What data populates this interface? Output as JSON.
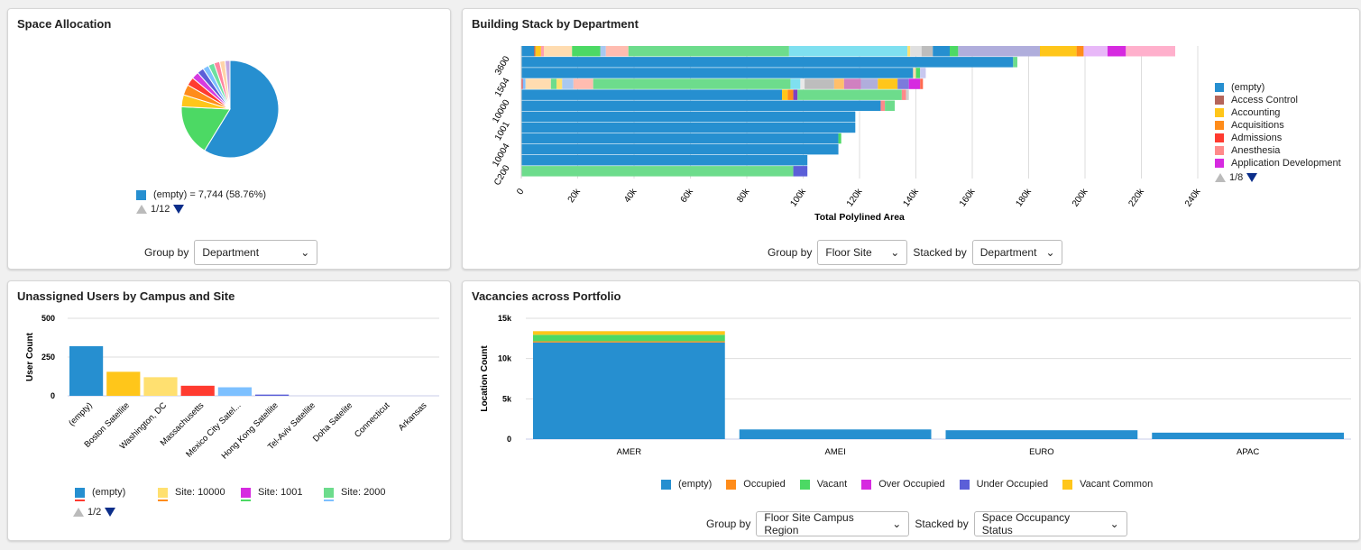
{
  "space_allocation": {
    "title": "Space Allocation",
    "legend_label": "(empty) = 7,744 (58.76%)",
    "legend_color": "#268fd0",
    "pager": "1/12",
    "group_by_label": "Group by",
    "group_by_value": "Department",
    "chart_data": {
      "type": "pie",
      "slices": [
        58.76,
        17,
        4,
        3.5,
        2.8,
        2.4,
        2.2,
        2,
        2,
        1.9,
        1.8,
        1.64
      ],
      "colors": [
        "#268fd0",
        "#4cd964",
        "#ffc61a",
        "#ff8c1a",
        "#ff3b30",
        "#d63ae0",
        "#5b5fd8",
        "#7dc0ff",
        "#6ee0a0",
        "#ff85a0",
        "#ffd4a8",
        "#c8a8e0"
      ]
    }
  },
  "building_stack": {
    "title": "Building Stack by Department",
    "group_by_label": "Group by",
    "group_by_value": "Floor Site",
    "stacked_by_label": "Stacked by",
    "stacked_by_value": "Department",
    "pager": "1/8",
    "legend": [
      {
        "label": "(empty)",
        "color": "#268fd0"
      },
      {
        "label": "Access Control",
        "color": "#b5655a"
      },
      {
        "label": "Accounting",
        "color": "#ffc61a"
      },
      {
        "label": "Acquisitions",
        "color": "#ff8c1a"
      },
      {
        "label": "Admissions",
        "color": "#ff3b30"
      },
      {
        "label": "Anesthesia",
        "color": "#ff8a8a"
      },
      {
        "label": "Application Development",
        "color": "#d62ae0"
      }
    ],
    "chart_data": {
      "type": "bar",
      "orientation": "horizontal",
      "stacked": true,
      "xlabel": "Total Polylined Area",
      "xlim": [
        0,
        240000
      ],
      "xticks": [
        "0",
        "20k",
        "40k",
        "60k",
        "80k",
        "100k",
        "120k",
        "140k",
        "160k",
        "180k",
        "200k",
        "220k",
        "240k"
      ],
      "categories": [
        "3600",
        "",
        "1504",
        "",
        "10000",
        "",
        "1001",
        "",
        "10004",
        "",
        "C200",
        ""
      ],
      "rows": [
        [
          [
            "#268fd0",
            4500
          ],
          [
            "#b5655a",
            500
          ],
          [
            "#ffc61a",
            2000
          ],
          [
            "#ff9eb0",
            1000
          ],
          [
            "#ffdcb0",
            10000
          ],
          [
            "#4cd964",
            10000
          ],
          [
            "#a8c8f0",
            2000
          ],
          [
            "#ffbcb0",
            8000
          ],
          [
            "#6ddc8c",
            57000
          ],
          [
            "#7fe0f0",
            42000
          ],
          [
            "#ffe070",
            1000
          ],
          [
            "#e0e0e0",
            4000
          ],
          [
            "#bdbdbd",
            4000
          ],
          [
            "#268fd0",
            6000
          ],
          [
            "#4cd964",
            3000
          ],
          [
            "#b0aedc",
            29000
          ],
          [
            "#ffc61a",
            13000
          ],
          [
            "#ff8c1a",
            2500
          ],
          [
            "#e8b8f8",
            8500
          ],
          [
            "#d62ae0",
            6500
          ],
          [
            "#ffb0cc",
            17500
          ]
        ],
        [
          [
            "#268fd0",
            174500
          ],
          [
            "#6ddc8c",
            1500
          ]
        ],
        [
          [
            "#268fd0",
            139000
          ],
          [
            "#ffdcb0",
            1000
          ],
          [
            "#4cd964",
            1500
          ],
          [
            "#c8c8f0",
            2000
          ]
        ],
        [
          [
            "#ff3b30",
            500
          ],
          [
            "#7dc0ff",
            1000
          ],
          [
            "#ffdcb0",
            9000
          ],
          [
            "#6ddc8c",
            2000
          ],
          [
            "#ffe070",
            2000
          ],
          [
            "#a8c8f0",
            4000
          ],
          [
            "#ffbcb0",
            7000
          ],
          [
            "#6ddc8c",
            70000
          ],
          [
            "#7fe0f0",
            3500
          ],
          [
            "#e8e8e8",
            1500
          ],
          [
            "#bdbdbd",
            10500
          ],
          [
            "#ffbf6a",
            3500
          ],
          [
            "#d080c0",
            6000
          ],
          [
            "#b0aedc",
            6000
          ],
          [
            "#ffc61a",
            7000
          ],
          [
            "#7b7bdc",
            4000
          ],
          [
            "#d62ae0",
            4000
          ],
          [
            "#ff6a50",
            1000
          ]
        ],
        [
          [
            "#268fd0",
            92500
          ],
          [
            "#ffc61a",
            2000
          ],
          [
            "#ff8c1a",
            2000
          ],
          [
            "#8040c0",
            1500
          ],
          [
            "#6ddc8c",
            37000
          ],
          [
            "#ff8a8a",
            1500
          ],
          [
            "#d0d0d0",
            1000
          ]
        ],
        [
          [
            "#268fd0",
            127500
          ],
          [
            "#ff8a8a",
            1500
          ],
          [
            "#6ddc8c",
            3500
          ]
        ],
        [
          [
            "#268fd0",
            118500
          ]
        ],
        [
          [
            "#268fd0",
            118500
          ]
        ],
        [
          [
            "#268fd0",
            112500
          ],
          [
            "#4cd964",
            1000
          ]
        ],
        [
          [
            "#268fd0",
            112500
          ]
        ],
        [
          [
            "#268fd0",
            101500
          ]
        ],
        [
          [
            "#6ddc8c",
            96500
          ],
          [
            "#5b5fd8",
            5000
          ]
        ]
      ]
    }
  },
  "unassigned_users": {
    "title": "Unassigned Users by Campus and Site",
    "pager": "1/2",
    "legend": [
      {
        "label": "(empty)",
        "color": "#268fd0",
        "under": "#ff3b30"
      },
      {
        "label": "Site: 10000",
        "color": "#ffe070",
        "under": "#ff8c1a"
      },
      {
        "label": "Site: 1001",
        "color": "#d62ae0",
        "under": "#4cd964"
      },
      {
        "label": "Site: 2000",
        "color": "#6ddc8c",
        "under": "#7dc0ff"
      }
    ],
    "chart_data": {
      "type": "bar",
      "ylabel": "User Count",
      "ylim": [
        0,
        500
      ],
      "yticks": [
        0,
        250,
        500
      ],
      "categories": [
        "(empty)",
        "Boston Satellite",
        "Washington, DC",
        "Massachusetts",
        "Mexico City Satel...",
        "Hong Kong Satellite",
        "Tel-Aviv Satellite",
        "Doha Satelite",
        "Connecticut",
        "Arkansas"
      ],
      "values": [
        320,
        155,
        120,
        65,
        55,
        8,
        0,
        0,
        0,
        0
      ],
      "colors": [
        "#268fd0",
        "#ffc61a",
        "#ffe070",
        "#ff3b30",
        "#7dc0ff",
        "#5b5fd8",
        "#999",
        "#999",
        "#999",
        "#999"
      ]
    }
  },
  "vacancies": {
    "title": "Vacancies across Portfolio",
    "group_by_label": "Group by",
    "group_by_value": "Floor Site Campus Region",
    "stacked_by_label": "Stacked by",
    "stacked_by_value": "Space Occupancy Status",
    "chart_data": {
      "type": "bar",
      "stacked": true,
      "ylabel": "Location Count",
      "ylim": [
        0,
        15000
      ],
      "yticks": [
        "0",
        "5k",
        "10k",
        "15k"
      ],
      "categories": [
        "AMER",
        "AMEI",
        "EURO",
        "APAC"
      ],
      "series": [
        {
          "name": "(empty)",
          "color": "#268fd0",
          "values": [
            12000,
            1200,
            1100,
            800
          ]
        },
        {
          "name": "Occupied",
          "color": "#ff8c1a",
          "values": [
            150,
            0,
            0,
            0
          ]
        },
        {
          "name": "Vacant",
          "color": "#4cd964",
          "values": [
            800,
            0,
            0,
            0
          ]
        },
        {
          "name": "Over Occupied",
          "color": "#d62ae0",
          "values": [
            0,
            0,
            0,
            0
          ]
        },
        {
          "name": "Under Occupied",
          "color": "#5b5fd8",
          "values": [
            0,
            0,
            0,
            0
          ]
        },
        {
          "name": "Vacant Common",
          "color": "#ffc61a",
          "values": [
            450,
            0,
            0,
            0
          ]
        }
      ]
    }
  }
}
